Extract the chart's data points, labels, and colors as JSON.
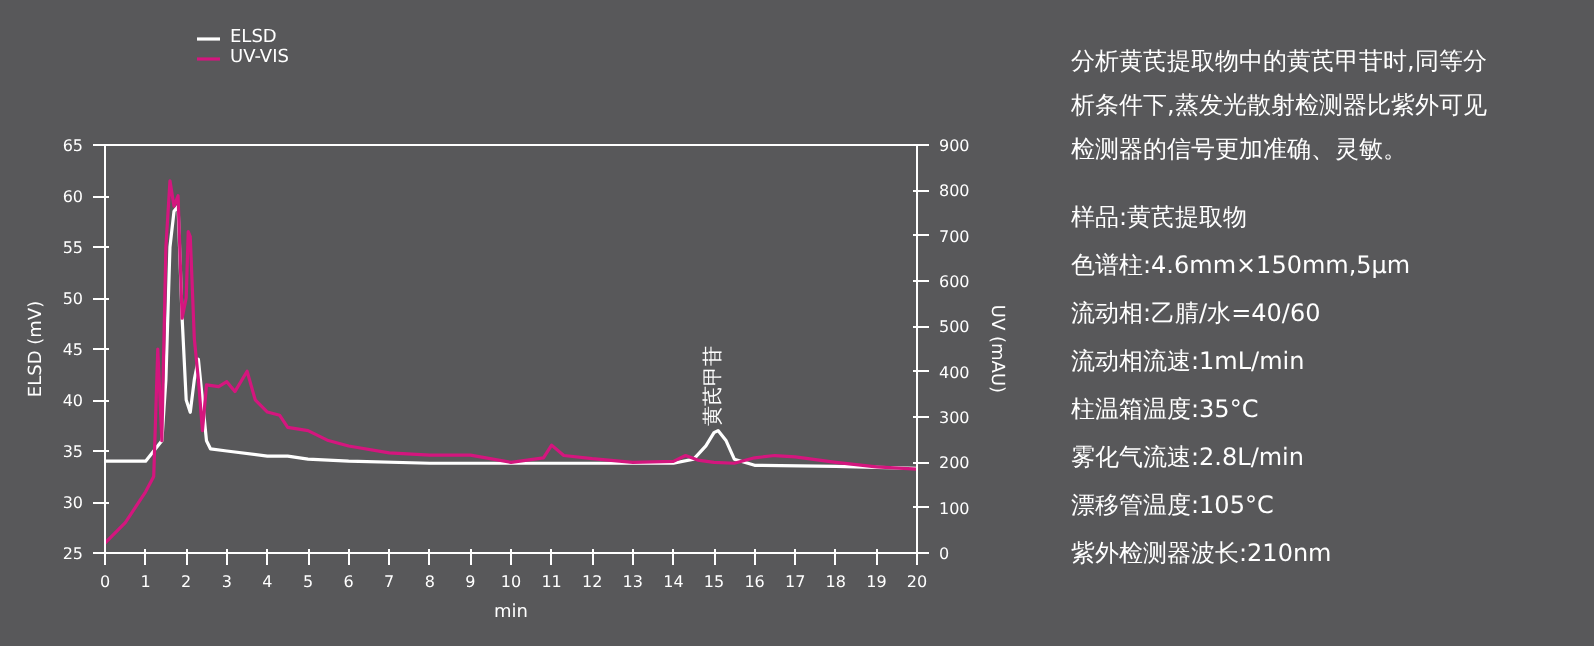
{
  "chart_data": {
    "type": "line",
    "xlabel": "min",
    "ylabel": "ELSD (mV)",
    "y2label": "UV (mAU)",
    "xlim": [
      0,
      20
    ],
    "xticks": [
      0,
      1,
      2,
      3,
      4,
      5,
      6,
      7,
      8,
      9,
      10,
      11,
      12,
      13,
      14,
      15,
      16,
      17,
      18,
      19,
      20
    ],
    "ylim": [
      25,
      65
    ],
    "yticks": [
      25,
      30,
      35,
      40,
      45,
      50,
      55,
      60,
      65
    ],
    "y2lim": [
      0,
      900
    ],
    "y2ticks": [
      0,
      100,
      200,
      300,
      400,
      500,
      600,
      700,
      800,
      900
    ],
    "grid": false,
    "legend": "top left",
    "series": [
      {
        "name": "ELSD",
        "color": "#ffffff",
        "x": [
          0,
          1,
          1.2,
          1.4,
          1.5,
          1.6,
          1.7,
          1.8,
          1.9,
          2.0,
          2.1,
          2.2,
          2.3,
          2.4,
          2.5,
          2.6,
          3,
          4,
          4.5,
          5,
          6,
          8,
          10,
          12,
          14,
          14.5,
          14.8,
          15,
          15.1,
          15.3,
          15.5,
          16,
          18,
          20
        ],
        "values": [
          34,
          34,
          35,
          36,
          42,
          55,
          58.5,
          59,
          48,
          40,
          38.8,
          42,
          44,
          40,
          36,
          35.2,
          35,
          34.5,
          34.5,
          34.2,
          34,
          33.8,
          33.8,
          33.8,
          33.8,
          34.2,
          35.5,
          36.8,
          37,
          36,
          34.2,
          33.6,
          33.5,
          33.3
        ]
      },
      {
        "name": "UV-VIS",
        "color": "#d4167e",
        "axis": "y2",
        "x": [
          0,
          0.5,
          1,
          1.2,
          1.3,
          1.4,
          1.5,
          1.6,
          1.7,
          1.8,
          1.9,
          2.0,
          2.05,
          2.1,
          2.2,
          2.3,
          2.4,
          2.5,
          2.8,
          3,
          3.2,
          3.5,
          3.7,
          4,
          4.3,
          4.5,
          5,
          5.5,
          6,
          7,
          8,
          9,
          10,
          10.8,
          11,
          11.3,
          12,
          13,
          14,
          14.3,
          14.6,
          15,
          15.5,
          16,
          16.5,
          17,
          18,
          19,
          20
        ],
        "values": [
          22,
          67,
          135,
          169,
          450,
          248,
          675,
          821,
          765,
          788,
          518,
          563,
          709,
          698,
          473,
          383,
          270,
          371,
          367,
          378,
          356,
          401,
          338,
          311,
          304,
          277,
          270,
          248,
          236,
          221,
          216,
          216,
          200,
          210,
          238,
          215,
          208,
          200,
          202,
          215,
          205,
          200,
          198,
          210,
          215,
          212,
          200,
          190,
          185
        ]
      }
    ],
    "annotations": [
      {
        "text": "黄芪甲苷",
        "x": 15,
        "y": 37.5
      },
      "分析黄芪提取物中的黄芪甲苷时,同等分析条件下,蒸发光散射检测器比紫外可见检测器的信号更加准确、灵敏。",
      "样品:黄芪提取物",
      "色谱柱:4.6mm×150mm,5μm",
      "流动相:乙腈/水=40/60",
      "流动相流速:1mL/min",
      "柱温箱温度:35°C",
      "雾化气流速:2.8L/min",
      "漂移管温度:105°C",
      "紫外检测器波长:210nm"
    ]
  }
}
